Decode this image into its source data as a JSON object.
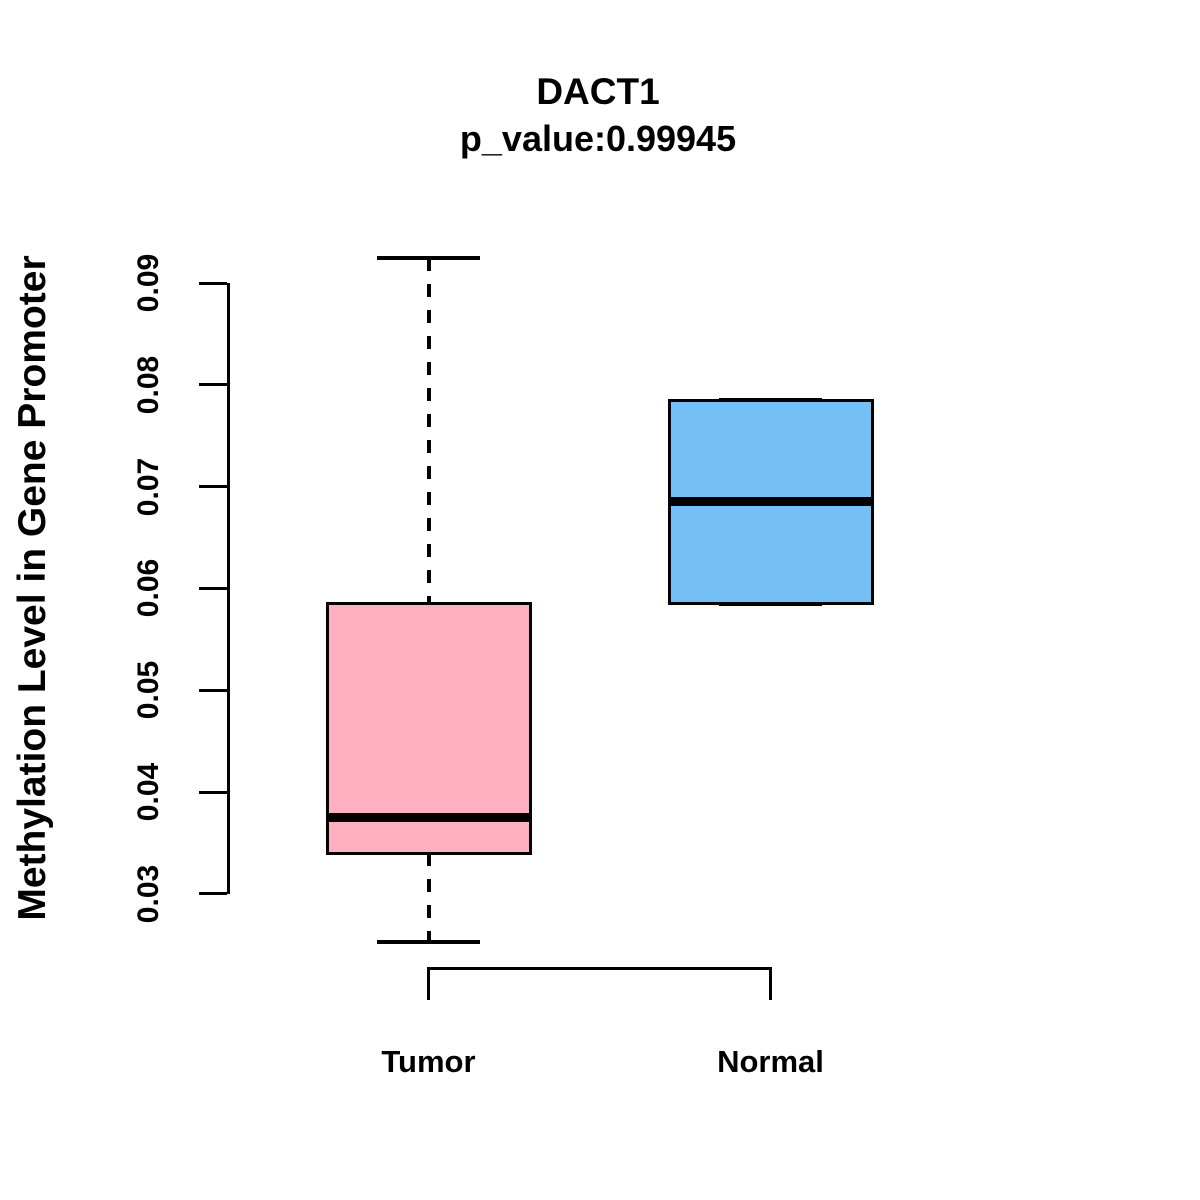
{
  "figure": {
    "title": "DACT1",
    "subtitle": "p_value:0.99945",
    "y_axis_label": "Methylation Level in Gene Promoter"
  },
  "chart_data": {
    "type": "boxplot",
    "title": "DACT1",
    "subtitle": "p_value:0.99945",
    "xlabel": "",
    "ylabel": "Methylation Level in Gene Promoter",
    "categories": [
      "Tumor",
      "Normal"
    ],
    "y_ticks": [
      "0.03",
      "0.04",
      "0.05",
      "0.06",
      "0.07",
      "0.08",
      "0.09"
    ],
    "y_axis_range": [
      0.03,
      0.09
    ],
    "grid": false,
    "legend": "none",
    "series": [
      {
        "name": "Tumor",
        "fill_color": "#FFAFC0",
        "whisker_low": 0.0253,
        "q1": 0.034,
        "median": 0.0375,
        "q3": 0.0585,
        "whisker_high": 0.0925
      },
      {
        "name": "Normal",
        "fill_color": "#73BFF6",
        "whisker_low": 0.0585,
        "q1": 0.0585,
        "median": 0.0685,
        "q3": 0.0785,
        "whisker_high": 0.0785
      }
    ],
    "box_border_color": "#000000",
    "text_color": "#000000"
  }
}
